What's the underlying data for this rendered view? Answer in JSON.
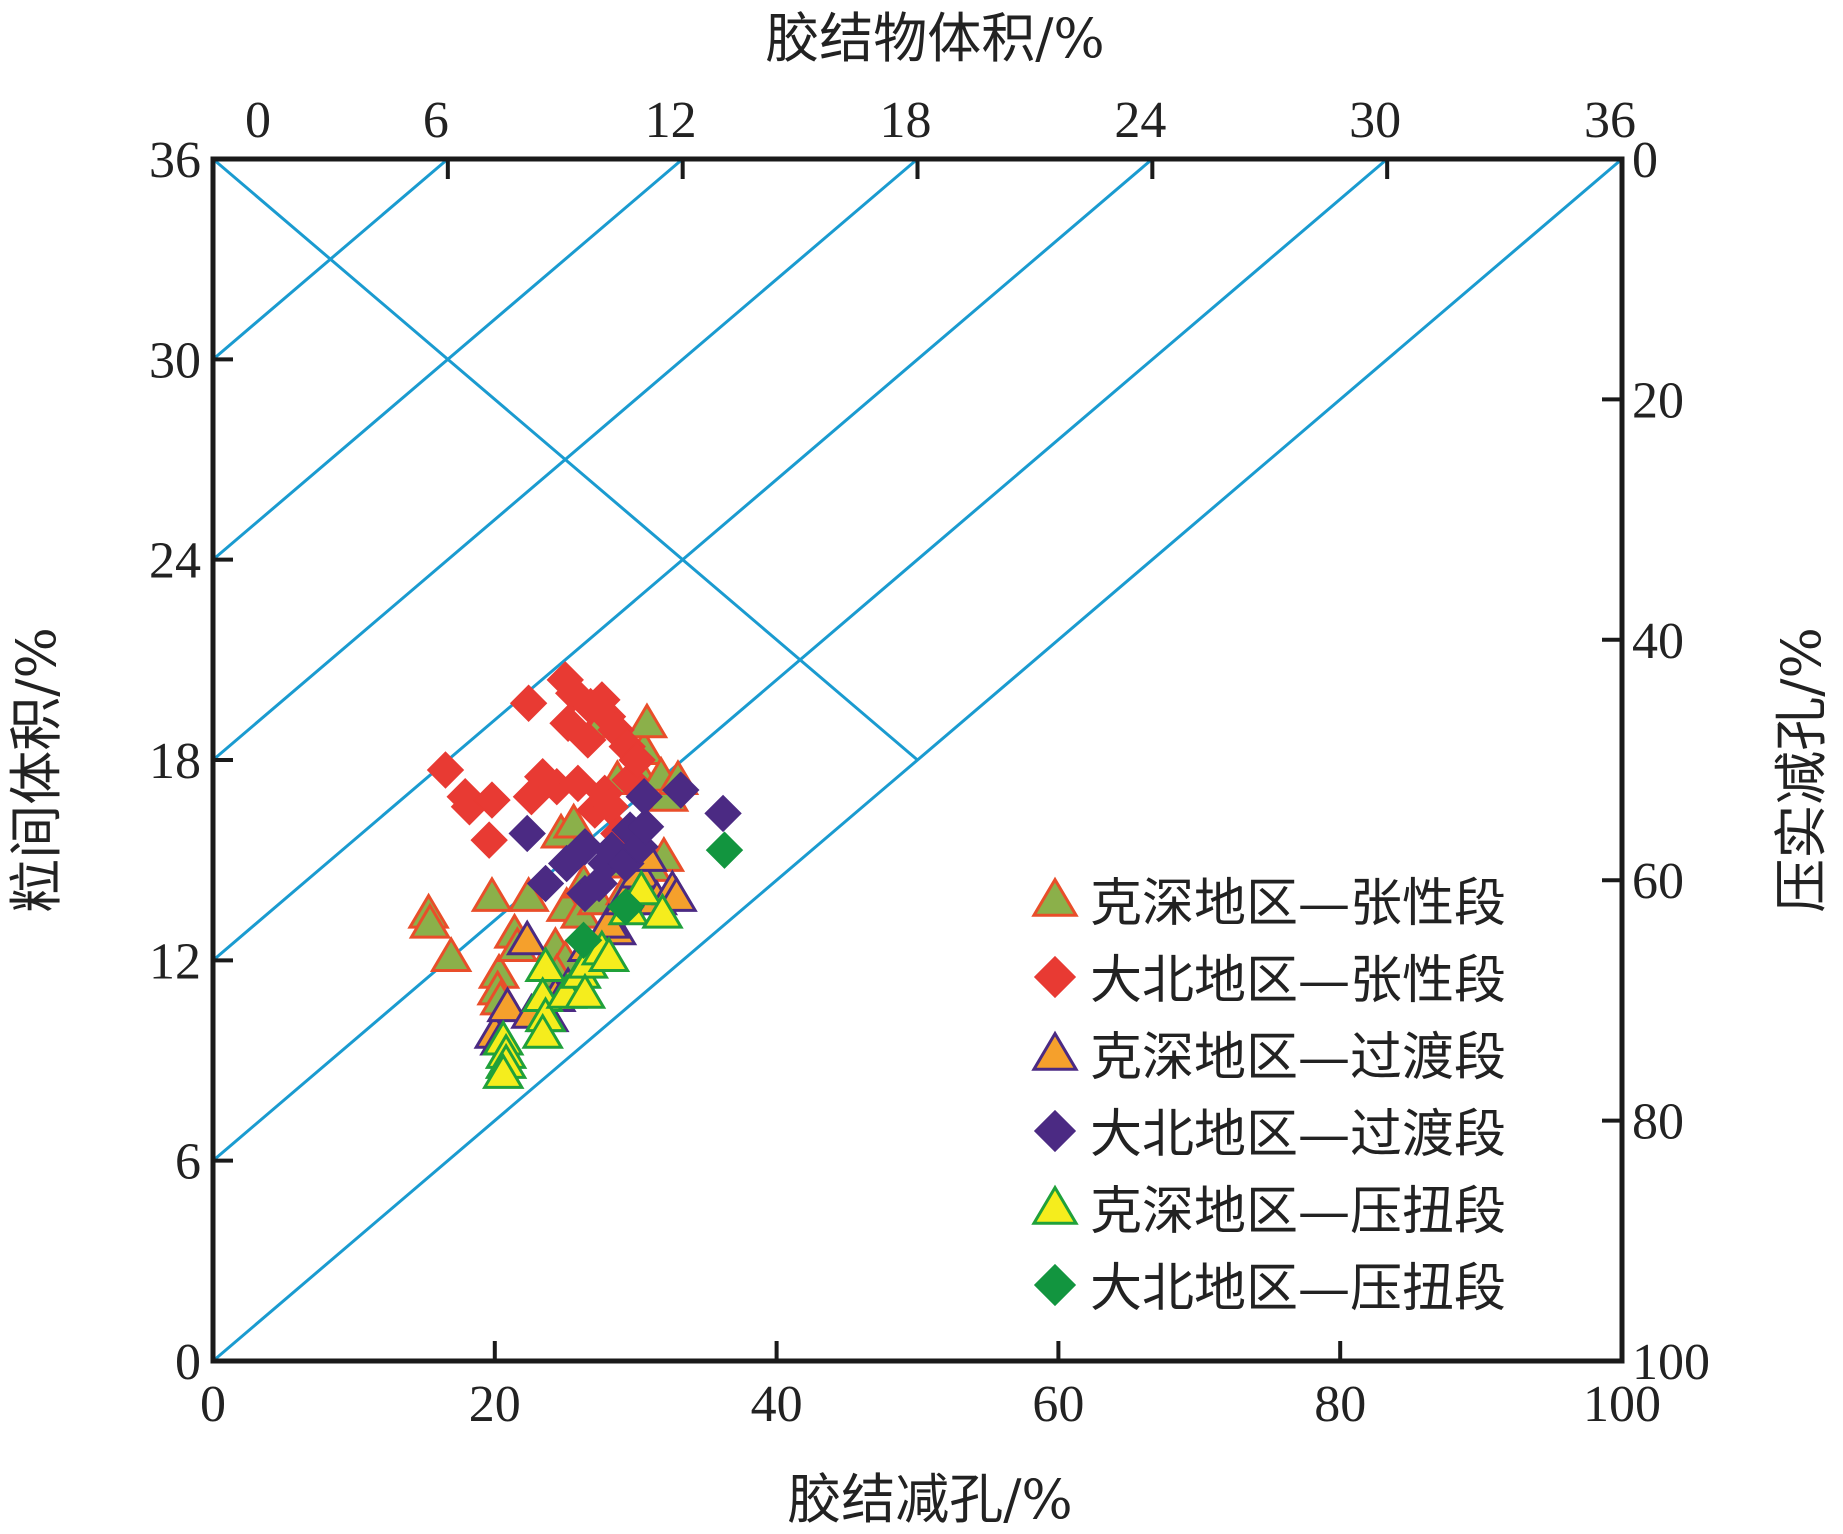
{
  "chart_data": {
    "type": "scatter",
    "title": "",
    "axes": {
      "bottom": {
        "label": "胶结减孔/%",
        "range": [
          0,
          100
        ],
        "ticks": [
          "0",
          "20",
          "40",
          "60",
          "80",
          "100"
        ]
      },
      "left": {
        "label": "粒间体积/%",
        "range": [
          0,
          36
        ],
        "ticks": [
          "0",
          "6",
          "12",
          "18",
          "24",
          "30",
          "36"
        ]
      },
      "top": {
        "label": "胶结物体积/%",
        "range": [
          0,
          36
        ],
        "ticks": [
          "0",
          "6",
          "12",
          "18",
          "24",
          "30",
          "36"
        ]
      },
      "right": {
        "label": "压实减孔/%",
        "range": [
          0,
          100
        ],
        "reversed": true,
        "ticks": [
          "0",
          "20",
          "40",
          "60",
          "80",
          "100"
        ]
      }
    },
    "grid": false,
    "legend_position": "bottom-right",
    "reference_lines_color": "#1a9bd0",
    "series": [
      {
        "name": "克深地区—张性段",
        "marker": "triangle",
        "fill": "#8bb04a",
        "stroke": "#e94e2a",
        "points": [
          [
            15.3,
            13.4
          ],
          [
            15.4,
            13.1
          ],
          [
            16.9,
            12.1
          ],
          [
            19.8,
            13.9
          ],
          [
            20.3,
            11.6
          ],
          [
            20.2,
            11.1
          ],
          [
            20.4,
            10.8
          ],
          [
            21.4,
            12.8
          ],
          [
            22.4,
            13.9
          ],
          [
            21.6,
            12.4
          ],
          [
            24.3,
            12.4
          ],
          [
            25.0,
            12.0
          ],
          [
            24.4,
            11.6
          ],
          [
            25.1,
            13.6
          ],
          [
            26.1,
            13.4
          ],
          [
            24.7,
            15.8
          ],
          [
            25.6,
            16.1
          ],
          [
            26.3,
            14.3
          ],
          [
            27.3,
            13.8
          ],
          [
            28.6,
            14.9
          ],
          [
            29.7,
            15.6
          ],
          [
            27.6,
            19.1
          ],
          [
            28.7,
            17.4
          ],
          [
            30.1,
            17.7
          ],
          [
            30.6,
            18.3
          ],
          [
            30.8,
            19.1
          ],
          [
            31.8,
            17.5
          ],
          [
            32.3,
            16.9
          ],
          [
            32.0,
            15.1
          ],
          [
            33.0,
            17.4
          ],
          [
            31.1,
            14.8
          ],
          [
            29.3,
            14.1
          ]
        ]
      },
      {
        "name": "大北地区—张性段",
        "marker": "diamond",
        "fill": "#e83a33",
        "stroke": "#e83a33",
        "points": [
          [
            16.5,
            17.7
          ],
          [
            17.9,
            16.9
          ],
          [
            18.2,
            16.6
          ],
          [
            19.6,
            15.6
          ],
          [
            19.8,
            16.8
          ],
          [
            22.4,
            19.7
          ],
          [
            22.6,
            16.9
          ],
          [
            23.4,
            17.5
          ],
          [
            24.4,
            17.2
          ],
          [
            25.0,
            20.4
          ],
          [
            25.2,
            19.1
          ],
          [
            25.6,
            20.0
          ],
          [
            25.9,
            17.3
          ],
          [
            26.6,
            18.6
          ],
          [
            26.8,
            19.6
          ],
          [
            27.6,
            19.8
          ],
          [
            28.0,
            19.3
          ],
          [
            27.1,
            16.5
          ],
          [
            27.8,
            17.0
          ],
          [
            28.6,
            18.9
          ],
          [
            29.4,
            18.4
          ],
          [
            29.6,
            17.4
          ],
          [
            30.1,
            18.0
          ],
          [
            28.2,
            16.6
          ],
          [
            28.8,
            15.8
          ]
        ]
      },
      {
        "name": "克深地区—过渡段",
        "marker": "triangle",
        "fill": "#f5a02c",
        "stroke": "#4b2a83",
        "points": [
          [
            20.0,
            9.8
          ],
          [
            20.4,
            9.6
          ],
          [
            20.9,
            10.6
          ],
          [
            22.3,
            12.6
          ],
          [
            22.6,
            10.4
          ],
          [
            23.8,
            10.3
          ],
          [
            24.3,
            10.9
          ],
          [
            25.2,
            11.2
          ],
          [
            26.6,
            12.4
          ],
          [
            27.6,
            12.4
          ],
          [
            28.6,
            12.9
          ],
          [
            28.1,
            13.1
          ],
          [
            29.2,
            13.8
          ],
          [
            30.3,
            14.6
          ],
          [
            31.5,
            13.8
          ],
          [
            32.6,
            14.1
          ],
          [
            32.9,
            13.9
          ],
          [
            30.8,
            15.1
          ]
        ]
      },
      {
        "name": "大北地区—过渡段",
        "marker": "diamond",
        "fill": "#4b2a83",
        "stroke": "#4b2a83",
        "points": [
          [
            22.3,
            15.8
          ],
          [
            23.6,
            14.3
          ],
          [
            25.1,
            14.9
          ],
          [
            26.4,
            15.4
          ],
          [
            26.4,
            14.0
          ],
          [
            27.4,
            14.3
          ],
          [
            27.9,
            14.9
          ],
          [
            28.3,
            15.3
          ],
          [
            29.3,
            14.9
          ],
          [
            29.6,
            15.9
          ],
          [
            30.3,
            15.4
          ],
          [
            30.7,
            16.0
          ],
          [
            30.6,
            16.9
          ],
          [
            33.2,
            17.1
          ],
          [
            36.2,
            16.4
          ]
        ]
      },
      {
        "name": "克深地区—压扭段",
        "marker": "triangle",
        "fill": "#f5ed1d",
        "stroke": "#20a13a",
        "points": [
          [
            20.6,
            9.6
          ],
          [
            20.8,
            9.2
          ],
          [
            20.8,
            8.9
          ],
          [
            20.6,
            8.6
          ],
          [
            23.6,
            11.8
          ],
          [
            23.4,
            10.9
          ],
          [
            23.6,
            10.3
          ],
          [
            23.4,
            9.8
          ],
          [
            25.1,
            11.0
          ],
          [
            26.1,
            11.6
          ],
          [
            26.6,
            11.9
          ],
          [
            26.4,
            11.0
          ],
          [
            27.6,
            12.3
          ],
          [
            28.1,
            12.1
          ],
          [
            29.5,
            13.5
          ],
          [
            30.4,
            14.1
          ],
          [
            31.9,
            13.4
          ]
        ]
      },
      {
        "name": "大北地区—压扭段",
        "marker": "diamond",
        "fill": "#12953f",
        "stroke": "#12953f",
        "points": [
          [
            26.3,
            12.6
          ],
          [
            29.3,
            13.6
          ],
          [
            36.3,
            15.3
          ]
        ]
      }
    ]
  }
}
